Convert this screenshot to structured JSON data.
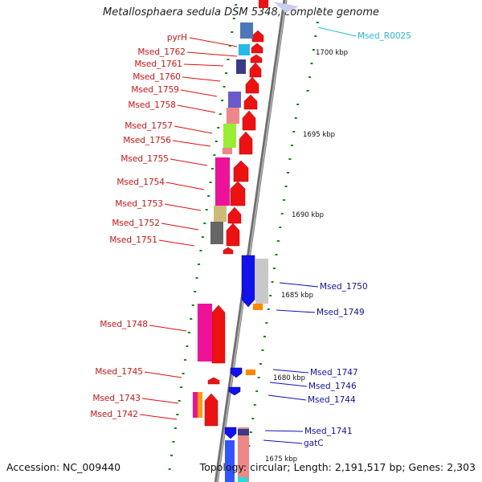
{
  "title": "Metallosphaera sedula DSM 5348, complete genome",
  "accession": "Accession: NC_009440",
  "topology": "Topology: circular; Length: 2,191,517 bp; Genes: 2,303",
  "colors": {
    "forward_label": "#dd1111",
    "reverse_label": "#0f0fbb",
    "rna_label": "#22bbdd",
    "forward_arrow": "#ee1111",
    "reverse_arrow": "#1111ee",
    "backbone": "#8a8a8a",
    "tick": "#118811"
  },
  "ticks": [
    {
      "label": "1700 kbp"
    },
    {
      "label": "1695 kbp"
    },
    {
      "label": "1690 kbp"
    },
    {
      "label": "1685 kbp"
    },
    {
      "label": "1680 kbp"
    },
    {
      "label": "1675 kbp"
    }
  ],
  "forward_genes": [
    {
      "name": "pyrH"
    },
    {
      "name": "Msed_1762"
    },
    {
      "name": "Msed_1761"
    },
    {
      "name": "Msed_1760"
    },
    {
      "name": "Msed_1759"
    },
    {
      "name": "Msed_1758"
    },
    {
      "name": "Msed_1757"
    },
    {
      "name": "Msed_1756"
    },
    {
      "name": "Msed_1755"
    },
    {
      "name": "Msed_1754"
    },
    {
      "name": "Msed_1753"
    },
    {
      "name": "Msed_1752"
    },
    {
      "name": "Msed_1751"
    },
    {
      "name": "Msed_1748"
    },
    {
      "name": "Msed_1745"
    },
    {
      "name": "Msed_1743"
    },
    {
      "name": "Msed_1742"
    }
  ],
  "reverse_genes": [
    {
      "name": "Msed_R0025"
    },
    {
      "name": "Msed_1750"
    },
    {
      "name": "Msed_1749"
    },
    {
      "name": "Msed_1747"
    },
    {
      "name": "Msed_1746"
    },
    {
      "name": "Msed_1744"
    },
    {
      "name": "Msed_1741"
    },
    {
      "name": "gatC"
    }
  ]
}
